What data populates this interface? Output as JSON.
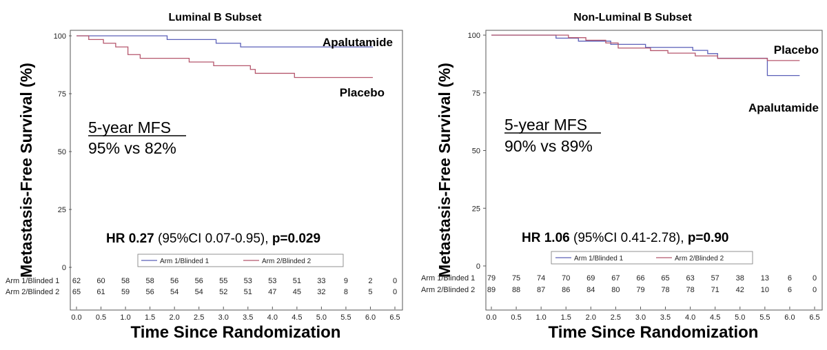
{
  "y_axis_label": "Metastasis-Free Survival (%)",
  "x_axis_label": "Time Since Randomization",
  "colors": {
    "arm1": "#5a5fb8",
    "arm2": "#b5566c"
  },
  "panels": [
    {
      "title": "Luminal B Subset",
      "mfs_title": "5-year MFS",
      "mfs_value": "95% vs 82%",
      "hr_label": "HR",
      "hr_value": "0.27",
      "hr_ci": "(95%CI 0.07-0.95),",
      "p_value": "p=0.029",
      "curve_label_top": "Apalutamide",
      "curve_label_bottom": "Placebo",
      "legend": [
        "Arm 1/Blinded 1",
        "Arm 2/Blinded 2"
      ],
      "risk_labels": [
        "Arm 1/Blinded 1",
        "Arm 2/Blinded 2"
      ],
      "risk_arm1": [
        "62",
        "60",
        "58",
        "58",
        "56",
        "56",
        "55",
        "53",
        "53",
        "51",
        "33",
        "9",
        "2",
        "0"
      ],
      "risk_arm2": [
        "65",
        "61",
        "59",
        "56",
        "54",
        "54",
        "52",
        "51",
        "47",
        "45",
        "32",
        "8",
        "5",
        "0"
      ]
    },
    {
      "title": "Non-Luminal B Subset",
      "mfs_title": "5-year MFS",
      "mfs_value": "90% vs 89%",
      "hr_label": "HR",
      "hr_value": "1.06",
      "hr_ci": "(95%CI 0.41-2.78),",
      "p_value": "p=0.90",
      "curve_label_top": "Placebo",
      "curve_label_bottom": "Apalutamide",
      "legend": [
        "Arm 1/Blinded 1",
        "Arm 2/Blinded 2"
      ],
      "risk_labels": [
        "Arm 1/Blinded 1",
        "Arm 2/Blinded 2"
      ],
      "risk_arm1": [
        "79",
        "75",
        "74",
        "70",
        "69",
        "67",
        "66",
        "65",
        "63",
        "57",
        "38",
        "13",
        "6",
        "0"
      ],
      "risk_arm2": [
        "89",
        "88",
        "87",
        "86",
        "84",
        "80",
        "79",
        "78",
        "78",
        "71",
        "42",
        "10",
        "6",
        "0"
      ]
    }
  ],
  "chart_data": [
    {
      "type": "line",
      "title": "Luminal B Subset",
      "xlabel": "Time Since Randomization",
      "ylabel": "Metastasis-Free Survival (%)",
      "xlim": [
        0,
        6.5
      ],
      "ylim": [
        0,
        100
      ],
      "x_ticks": [
        "0.0",
        "0.5",
        "1.0",
        "1.5",
        "2.0",
        "2.5",
        "3.0",
        "3.5",
        "4.0",
        "4.5",
        "5.0",
        "5.5",
        "6.0",
        "6.5"
      ],
      "y_ticks": [
        "0",
        "25",
        "50",
        "75",
        "100"
      ],
      "series": [
        {
          "name": "Arm 1/Blinded 1",
          "color": "#5a5fb8",
          "x": [
            0,
            1.85,
            2.85,
            3.35,
            6.05
          ],
          "y": [
            100,
            98.4,
            96.8,
            95.2,
            95.2
          ]
        },
        {
          "name": "Arm 2/Blinded 2",
          "color": "#b5566c",
          "x": [
            0,
            0.25,
            0.55,
            0.8,
            1.05,
            1.3,
            2.3,
            2.8,
            3.55,
            3.65,
            3.75,
            4.45,
            6.05
          ],
          "y": [
            100,
            98.4,
            96.8,
            95.2,
            91.9,
            90.3,
            88.7,
            87.1,
            85.5,
            83.8,
            83.8,
            82.0,
            82.0
          ]
        }
      ]
    },
    {
      "type": "line",
      "title": "Non-Luminal B Subset",
      "xlabel": "Time Since Randomization",
      "ylabel": "Metastasis-Free Survival (%)",
      "xlim": [
        0,
        6.5
      ],
      "ylim": [
        0,
        100
      ],
      "x_ticks": [
        "0.0",
        "0.5",
        "1.0",
        "1.5",
        "2.0",
        "2.5",
        "3.0",
        "3.5",
        "4.0",
        "4.5",
        "5.0",
        "5.5",
        "6.0",
        "6.5"
      ],
      "y_ticks": [
        "0",
        "25",
        "50",
        "75",
        "100"
      ],
      "series": [
        {
          "name": "Arm 1/Blinded 1",
          "color": "#5a5fb8",
          "x": [
            0,
            1.3,
            1.75,
            2.4,
            3.1,
            4.05,
            4.35,
            4.55,
            5.55,
            6.2
          ],
          "y": [
            100,
            98.7,
            97.4,
            96.0,
            94.7,
            93.4,
            92.0,
            90.0,
            82.5,
            82.5
          ]
        },
        {
          "name": "Arm 2/Blinded 2",
          "color": "#b5566c",
          "x": [
            0,
            1.55,
            1.9,
            2.3,
            2.55,
            3.2,
            3.55,
            4.1,
            4.55,
            5.55,
            6.2
          ],
          "y": [
            100,
            98.9,
            97.8,
            96.6,
            94.4,
            93.3,
            92.2,
            91.0,
            89.9,
            89.0,
            89.0
          ]
        }
      ]
    }
  ]
}
